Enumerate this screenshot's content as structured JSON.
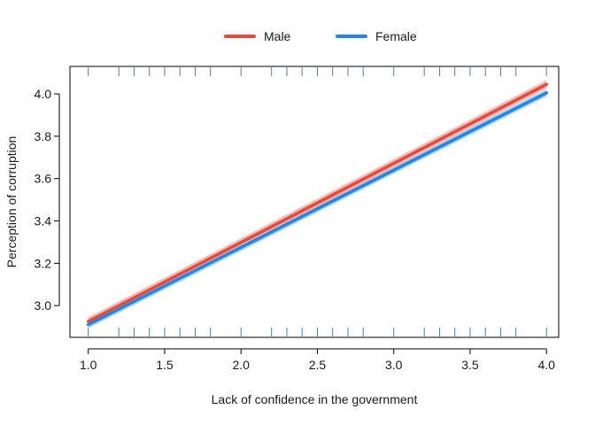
{
  "chart_data": {
    "type": "line",
    "xlabel": "Lack of confidence in the government",
    "ylabel": "Perception of corruption",
    "xlim": [
      0.88,
      4.08
    ],
    "ylim": [
      2.85,
      4.13
    ],
    "x_ticks": [
      1.0,
      1.5,
      2.0,
      2.5,
      3.0,
      3.5,
      4.0
    ],
    "x_tick_labels": [
      "1.0",
      "1.5",
      "2.0",
      "2.5",
      "3.0",
      "3.5",
      "4.0"
    ],
    "y_ticks": [
      3.0,
      3.2,
      3.4,
      3.6,
      3.8,
      4.0
    ],
    "y_tick_labels": [
      "3.0",
      "3.2",
      "3.4",
      "3.6",
      "3.8",
      "4.0"
    ],
    "legend_position": "top",
    "series": [
      {
        "name": "Male",
        "color": "#E8493A",
        "band_color": "#F4A59C",
        "x": [
          1.0,
          4.0
        ],
        "y": [
          2.925,
          4.045
        ],
        "ci_lower": [
          2.905,
          4.025
        ],
        "ci_upper": [
          2.945,
          4.065
        ],
        "rug_position": "top"
      },
      {
        "name": "Female",
        "color": "#1E88E5",
        "band_color": "#8EC4F2",
        "x": [
          1.0,
          4.0
        ],
        "y": [
          2.91,
          4.005
        ],
        "ci_lower": [
          2.893,
          3.988
        ],
        "ci_upper": [
          2.927,
          4.022
        ],
        "rug_position": "bottom"
      }
    ],
    "rug_top": [
      1.0,
      1.2,
      1.3,
      1.4,
      1.5,
      1.6,
      1.7,
      1.8,
      2.0,
      2.2,
      2.3,
      2.4,
      2.5,
      2.6,
      2.7,
      2.8,
      3.0,
      3.2,
      3.3,
      3.4,
      3.5,
      3.6,
      3.7,
      3.8,
      4.0
    ],
    "rug_bottom": [
      1.0,
      1.2,
      1.3,
      1.4,
      1.5,
      1.6,
      1.7,
      1.8,
      2.0,
      2.2,
      2.3,
      2.4,
      2.5,
      2.6,
      2.7,
      2.8,
      3.0,
      3.2,
      3.3,
      3.4,
      3.5,
      3.6,
      3.7,
      3.8,
      4.0
    ]
  }
}
